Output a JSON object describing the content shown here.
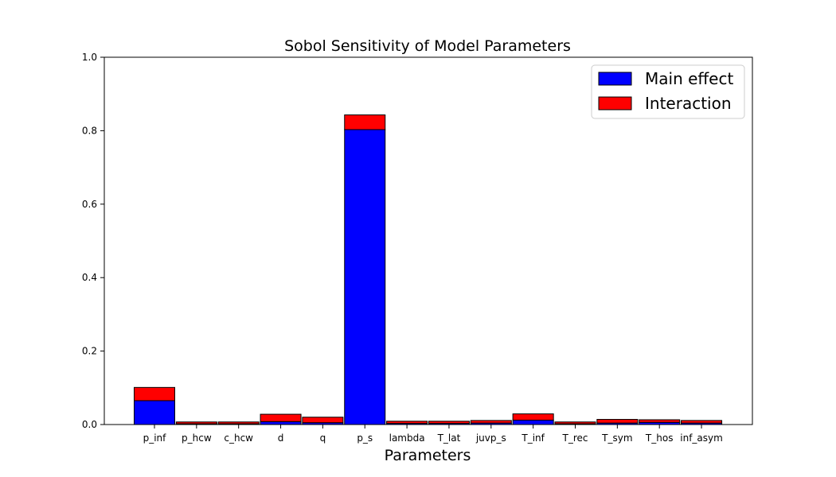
{
  "chart_data": {
    "type": "bar",
    "stacked": true,
    "title": "Sobol Sensitivity of Model Parameters",
    "xlabel": "Parameters",
    "ylabel": "",
    "ylim": [
      0,
      1.0
    ],
    "yticks": [
      "0.0",
      "0.2",
      "0.4",
      "0.6",
      "0.8",
      "1.0"
    ],
    "categories": [
      "p_inf",
      "p_hcw",
      "c_hcw",
      "d",
      "q",
      "p_s",
      "lambda",
      "T_lat",
      "juvp_s",
      "T_inf",
      "T_rec",
      "T_sym",
      "T_hos",
      "inf_asym"
    ],
    "series": [
      {
        "name": "Main effect",
        "color": "#0000ff",
        "values": [
          0.065,
          0.002,
          0.002,
          0.008,
          0.005,
          0.803,
          0.003,
          0.003,
          0.004,
          0.012,
          0.002,
          0.004,
          0.006,
          0.004
        ]
      },
      {
        "name": "Interaction",
        "color": "#ff0000",
        "values": [
          0.036,
          0.005,
          0.005,
          0.02,
          0.015,
          0.04,
          0.006,
          0.006,
          0.007,
          0.017,
          0.005,
          0.01,
          0.007,
          0.007
        ]
      }
    ],
    "legend_position": "upper-right",
    "grid": false
  }
}
